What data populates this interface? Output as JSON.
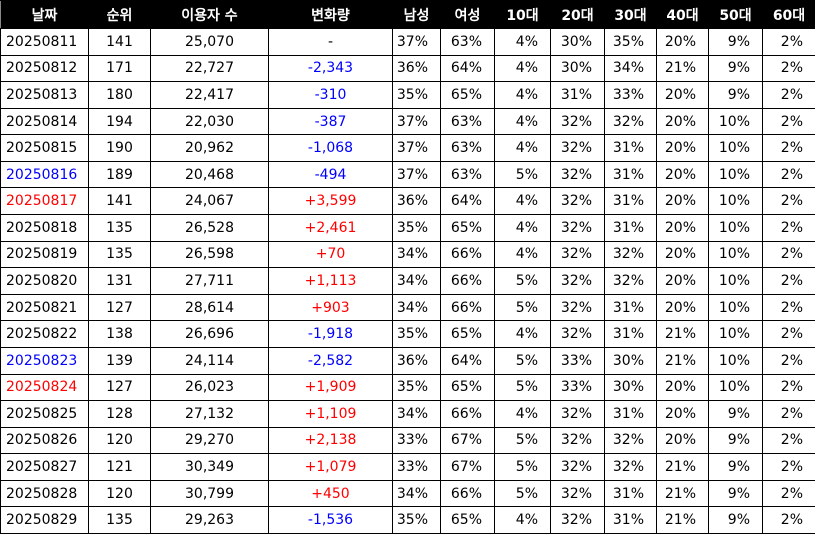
{
  "table": {
    "header": [
      "날짜",
      "순위",
      "이용자 수",
      "변화량",
      "남성",
      "여성",
      "10대",
      "20대",
      "30대",
      "40대",
      "50대",
      "60대"
    ],
    "rows": [
      [
        "20250811",
        "141",
        "25,070",
        "-",
        "37%",
        "63%",
        "4%",
        "30%",
        "35%",
        "20%",
        "9%",
        "2%"
      ],
      [
        "20250812",
        "171",
        "22,727",
        "-2,343",
        "36%",
        "64%",
        "4%",
        "30%",
        "34%",
        "21%",
        "9%",
        "2%"
      ],
      [
        "20250813",
        "180",
        "22,417",
        "-310",
        "35%",
        "65%",
        "4%",
        "31%",
        "33%",
        "20%",
        "9%",
        "2%"
      ],
      [
        "20250814",
        "194",
        "22,030",
        "-387",
        "37%",
        "63%",
        "4%",
        "32%",
        "32%",
        "20%",
        "10%",
        "2%"
      ],
      [
        "20250815",
        "190",
        "20,962",
        "-1,068",
        "37%",
        "63%",
        "4%",
        "32%",
        "31%",
        "20%",
        "10%",
        "2%"
      ],
      [
        "20250816",
        "189",
        "20,468",
        "-494",
        "37%",
        "63%",
        "5%",
        "32%",
        "31%",
        "20%",
        "10%",
        "2%"
      ],
      [
        "20250817",
        "141",
        "24,067",
        "+3,599",
        "36%",
        "64%",
        "4%",
        "32%",
        "31%",
        "20%",
        "10%",
        "2%"
      ],
      [
        "20250818",
        "135",
        "26,528",
        "+2,461",
        "35%",
        "65%",
        "4%",
        "32%",
        "31%",
        "20%",
        "10%",
        "2%"
      ],
      [
        "20250819",
        "135",
        "26,598",
        "+70",
        "34%",
        "66%",
        "4%",
        "32%",
        "32%",
        "20%",
        "10%",
        "2%"
      ],
      [
        "20250820",
        "131",
        "27,711",
        "+1,113",
        "34%",
        "66%",
        "5%",
        "32%",
        "32%",
        "20%",
        "10%",
        "2%"
      ],
      [
        "20250821",
        "127",
        "28,614",
        "+903",
        "34%",
        "66%",
        "5%",
        "32%",
        "31%",
        "20%",
        "10%",
        "2%"
      ],
      [
        "20250822",
        "138",
        "26,696",
        "-1,918",
        "35%",
        "65%",
        "4%",
        "32%",
        "31%",
        "21%",
        "10%",
        "2%"
      ],
      [
        "20250823",
        "139",
        "24,114",
        "-2,582",
        "36%",
        "64%",
        "5%",
        "33%",
        "30%",
        "21%",
        "10%",
        "2%"
      ],
      [
        "20250824",
        "127",
        "26,023",
        "+1,909",
        "35%",
        "65%",
        "5%",
        "33%",
        "30%",
        "20%",
        "10%",
        "2%"
      ],
      [
        "20250825",
        "128",
        "27,132",
        "+1,109",
        "34%",
        "66%",
        "4%",
        "32%",
        "31%",
        "20%",
        "9%",
        "2%"
      ],
      [
        "20250826",
        "120",
        "29,270",
        "+2,138",
        "33%",
        "67%",
        "5%",
        "32%",
        "32%",
        "20%",
        "9%",
        "2%"
      ],
      [
        "20250827",
        "121",
        "30,349",
        "+1,079",
        "33%",
        "67%",
        "5%",
        "32%",
        "32%",
        "21%",
        "9%",
        "2%"
      ],
      [
        "20250828",
        "120",
        "30,799",
        "+450",
        "34%",
        "66%",
        "5%",
        "32%",
        "31%",
        "21%",
        "9%",
        "2%"
      ],
      [
        "20250829",
        "135",
        "29,263",
        "-1,536",
        "35%",
        "65%",
        "4%",
        "32%",
        "31%",
        "21%",
        "9%",
        "2%"
      ]
    ]
  }
}
